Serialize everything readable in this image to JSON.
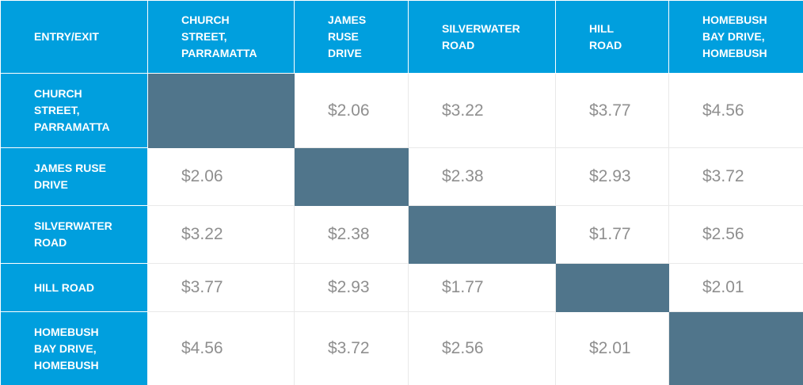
{
  "colors": {
    "header_bg": "#009fde",
    "header_text": "#ffffff",
    "diagonal_fill": "#50758b",
    "value_text": "#8f8f8f",
    "grid_line": "#e9e9e9"
  },
  "table": {
    "corner_label": "ENTRY/EXIT",
    "columns": [
      "CHURCH STREET, PARRAMATTA",
      "JAMES RUSE DRIVE",
      "SILVERWATER ROAD",
      "HILL ROAD",
      "HOMEBUSH BAY DRIVE, HOMEBUSH"
    ],
    "rows": [
      {
        "label": "CHURCH STREET, PARRAMATTA",
        "cells": [
          "",
          "$2.06",
          "$3.22",
          "$3.77",
          "$4.56"
        ]
      },
      {
        "label": "JAMES RUSE DRIVE",
        "cells": [
          "$2.06",
          "",
          "$2.38",
          "$2.93",
          "$3.72"
        ]
      },
      {
        "label": "SILVERWATER ROAD",
        "cells": [
          "$3.22",
          "$2.38",
          "",
          "$1.77",
          "$2.56"
        ]
      },
      {
        "label": "HILL ROAD",
        "cells": [
          "$3.77",
          "$2.93",
          "$1.77",
          "",
          "$2.01"
        ]
      },
      {
        "label": "HOMEBUSH BAY DRIVE, HOMEBUSH",
        "cells": [
          "$4.56",
          "$3.72",
          "$2.56",
          "$2.01",
          ""
        ]
      }
    ]
  }
}
